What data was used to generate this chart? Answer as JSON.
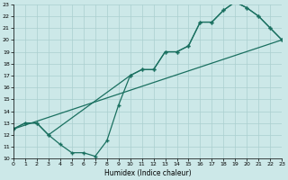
{
  "xlabel": "Humidex (Indice chaleur)",
  "bg_color": "#cce8e8",
  "grid_color": "#aacfcf",
  "line_color": "#1a7060",
  "xlim": [
    0,
    23
  ],
  "ylim": [
    10,
    23
  ],
  "xticks": [
    0,
    1,
    2,
    3,
    4,
    5,
    6,
    7,
    8,
    9,
    10,
    11,
    12,
    13,
    14,
    15,
    16,
    17,
    18,
    19,
    20,
    21,
    22,
    23
  ],
  "yticks": [
    10,
    11,
    12,
    13,
    14,
    15,
    16,
    17,
    18,
    19,
    20,
    21,
    22,
    23
  ],
  "line_upper": {
    "x": [
      0,
      1,
      2,
      3,
      10,
      11,
      12,
      13,
      14,
      15,
      16,
      17,
      18,
      19,
      20,
      21,
      22,
      23
    ],
    "y": [
      12.5,
      13,
      13,
      12,
      17,
      17.5,
      17.5,
      19,
      19,
      19.5,
      21.5,
      21.5,
      22.5,
      23.2,
      22.7,
      22,
      21,
      20
    ]
  },
  "line_dip": {
    "x": [
      0,
      1,
      2,
      3,
      4,
      5,
      6,
      7,
      8,
      9,
      10,
      11,
      12,
      13,
      14,
      15,
      16,
      17,
      18,
      19,
      20,
      21,
      22,
      23
    ],
    "y": [
      12.5,
      13,
      13,
      12,
      11.2,
      10.5,
      10.5,
      10.2,
      11.5,
      14.5,
      17,
      17.5,
      17.5,
      19,
      19,
      19.5,
      21.5,
      21.5,
      22.5,
      23.2,
      22.7,
      22,
      21,
      20
    ]
  },
  "line_diag": {
    "x": [
      0,
      23
    ],
    "y": [
      12.5,
      20
    ]
  }
}
